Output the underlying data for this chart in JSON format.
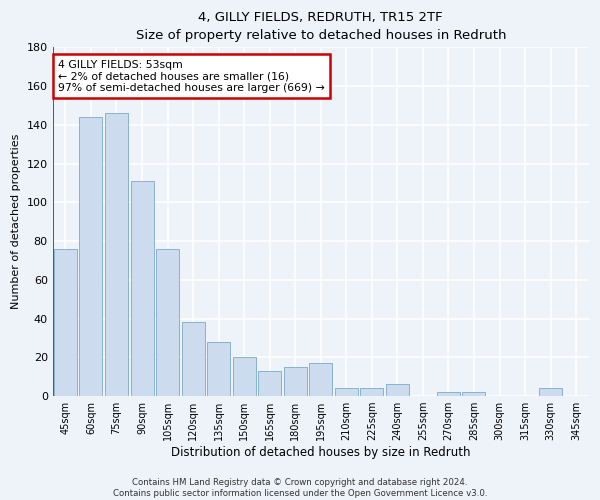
{
  "title": "4, GILLY FIELDS, REDRUTH, TR15 2TF",
  "subtitle": "Size of property relative to detached houses in Redruth",
  "xlabel": "Distribution of detached houses by size in Redruth",
  "ylabel": "Number of detached properties",
  "bar_color": "#ccdcee",
  "bar_edge_color": "#7aaac8",
  "categories": [
    "45sqm",
    "60sqm",
    "75sqm",
    "90sqm",
    "105sqm",
    "120sqm",
    "135sqm",
    "150sqm",
    "165sqm",
    "180sqm",
    "195sqm",
    "210sqm",
    "225sqm",
    "240sqm",
    "255sqm",
    "270sqm",
    "285sqm",
    "300sqm",
    "315sqm",
    "330sqm",
    "345sqm"
  ],
  "values": [
    76,
    144,
    146,
    111,
    76,
    38,
    28,
    20,
    13,
    15,
    17,
    4,
    4,
    6,
    0,
    2,
    2,
    0,
    0,
    4,
    0
  ],
  "ylim": [
    0,
    180
  ],
  "yticks": [
    0,
    20,
    40,
    60,
    80,
    100,
    120,
    140,
    160,
    180
  ],
  "annotation_line1": "4 GILLY FIELDS: 53sqm",
  "annotation_line2": "← 2% of detached houses are smaller (16)",
  "annotation_line3": "97% of semi-detached houses are larger (669) →",
  "annotation_box_color": "#ffffff",
  "annotation_box_edge": "#cc0000",
  "footnote": "Contains HM Land Registry data © Crown copyright and database right 2024.\nContains public sector information licensed under the Open Government Licence v3.0.",
  "background_color": "#eef2f9",
  "grid_color": "#ffffff"
}
